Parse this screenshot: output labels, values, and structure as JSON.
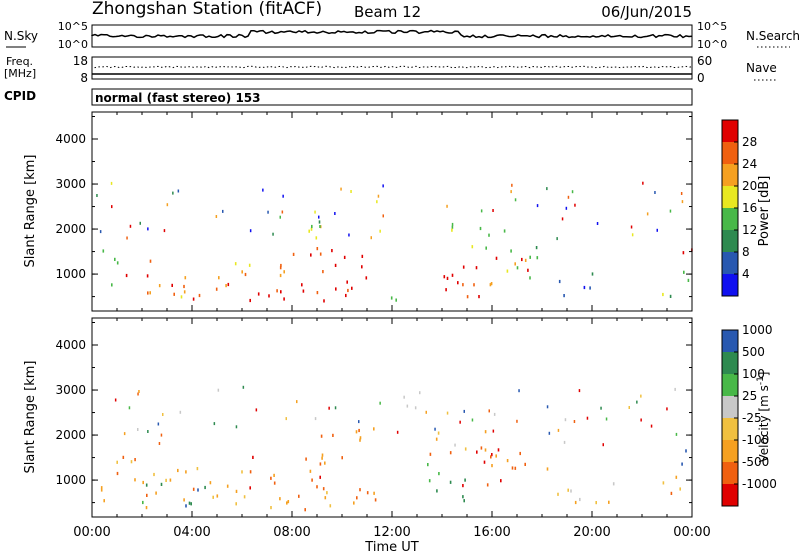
{
  "header": {
    "station": "Zhongshan Station (fitACF)",
    "beam": "Beam 12",
    "date": "06/Jun/2015"
  },
  "side_labels": {
    "nsky": "N.Sky",
    "nsearch": "N.Search",
    "freq": "Freq.",
    "freq_unit": "[MHz]",
    "nave": "Nave",
    "cpid": "CPID"
  },
  "strip_ticks": {
    "noise_left": [
      "10^5",
      "10^0"
    ],
    "noise_right": [
      "10^5",
      "10^0"
    ],
    "freq_left": [
      "18",
      "8"
    ],
    "nave_right": [
      "60",
      "0"
    ]
  },
  "cpid_text": "normal (fast stereo) 153",
  "colors": {
    "power": [
      "#1010f0",
      "#2858b0",
      "#2e8a50",
      "#48b848",
      "#e8e820",
      "#f5a020",
      "#f06010",
      "#e00000"
    ],
    "velocity": [
      "#e00000",
      "#f06010",
      "#f5a020",
      "#f0c040",
      "#c8c8c8",
      "#48b848",
      "#2e8a50",
      "#2858b0"
    ],
    "axis": "#000000",
    "background": "#ffffff"
  },
  "chart_data": [
    {
      "type": "heatmap",
      "panel": "power",
      "ylabel": "Slant Range [km]",
      "xlabel": "",
      "ylim": [
        180,
        4600
      ],
      "yticks": [
        "1000",
        "2000",
        "3000",
        "4000"
      ],
      "xlim": [
        0,
        24
      ],
      "colorbar": {
        "label": "Power [dB]",
        "ticks": [
          "4",
          "8",
          "12",
          "16",
          "20",
          "24",
          "28"
        ],
        "range": [
          0,
          32
        ]
      },
      "regions": [
        {
          "t0": 0.3,
          "t1": 1.0,
          "r0": 400,
          "r1": 1700,
          "level": 3
        },
        {
          "t0": 1.0,
          "t1": 2.5,
          "r0": 900,
          "r1": 1400,
          "level": 7
        },
        {
          "t0": 1.5,
          "t1": 4.0,
          "r0": 450,
          "r1": 900,
          "level": 5
        },
        {
          "t0": 2.5,
          "t1": 5.5,
          "r0": 500,
          "r1": 1150,
          "level": 6
        },
        {
          "t0": 4.0,
          "t1": 9.5,
          "r0": 350,
          "r1": 800,
          "level": 7
        },
        {
          "t0": 5.5,
          "t1": 8.0,
          "r0": 800,
          "r1": 1300,
          "level": 5
        },
        {
          "t0": 7.5,
          "t1": 10.0,
          "r0": 1000,
          "r1": 1700,
          "level": 6
        },
        {
          "t0": 9.5,
          "t1": 11.3,
          "r0": 550,
          "r1": 1800,
          "level": 7
        },
        {
          "t0": 8.0,
          "t1": 11.0,
          "r0": 1800,
          "r1": 2200,
          "level": 3
        },
        {
          "t0": 10.5,
          "t1": 12.5,
          "r0": 400,
          "r1": 600,
          "level": 3
        },
        {
          "t0": 13.3,
          "t1": 15.5,
          "r0": 500,
          "r1": 1600,
          "level": 7
        },
        {
          "t0": 13.5,
          "t1": 16.5,
          "r0": 1600,
          "r1": 2100,
          "level": 3
        },
        {
          "t0": 15.5,
          "t1": 17.5,
          "r0": 700,
          "r1": 1500,
          "level": 6
        },
        {
          "t0": 16.5,
          "t1": 18.5,
          "r0": 900,
          "r1": 1700,
          "level": 3
        },
        {
          "t0": 18.5,
          "t1": 20.0,
          "r0": 400,
          "r1": 1200,
          "level": 1
        },
        {
          "t0": 22.8,
          "t1": 24.0,
          "r0": 1300,
          "r1": 1700,
          "level": 7
        },
        {
          "t0": 22.8,
          "t1": 24.0,
          "r0": 500,
          "r1": 1300,
          "level": 3
        }
      ]
    },
    {
      "type": "heatmap",
      "panel": "velocity",
      "ylabel": "Slant Range [km]",
      "xlabel": "Time UT",
      "ylim": [
        180,
        4600
      ],
      "yticks": [
        "1000",
        "2000",
        "3000",
        "4000"
      ],
      "xlim": [
        0,
        24
      ],
      "xticks": [
        "00:00",
        "04:00",
        "08:00",
        "12:00",
        "16:00",
        "20:00",
        "00:00"
      ],
      "colorbar": {
        "label": "Velocity [m s",
        "label_sup": "-1",
        "label_end": "]",
        "ticks": [
          "-1000",
          "-500",
          "-100",
          "-25",
          "25",
          "100",
          "500",
          "1000"
        ],
        "range": [
          -1500,
          1500
        ]
      },
      "regions": [
        {
          "t0": 0.3,
          "t1": 2.5,
          "r0": 400,
          "r1": 1700,
          "level": 2
        },
        {
          "t0": 1.5,
          "t1": 4.5,
          "r0": 450,
          "r1": 1000,
          "level": 6
        },
        {
          "t0": 2.5,
          "t1": 6.0,
          "r0": 500,
          "r1": 1300,
          "level": 2
        },
        {
          "t0": 4.0,
          "t1": 10.0,
          "r0": 350,
          "r1": 800,
          "level": 2
        },
        {
          "t0": 6.0,
          "t1": 9.5,
          "r0": 800,
          "r1": 1600,
          "level": 1
        },
        {
          "t0": 8.5,
          "t1": 11.5,
          "r0": 1500,
          "r1": 2300,
          "level": 1
        },
        {
          "t0": 10.0,
          "t1": 12.5,
          "r0": 400,
          "r1": 900,
          "level": 2
        },
        {
          "t0": 13.3,
          "t1": 15.0,
          "r0": 500,
          "r1": 1500,
          "level": 6
        },
        {
          "t0": 14.5,
          "t1": 17.0,
          "r0": 900,
          "r1": 1800,
          "level": 1
        },
        {
          "t0": 13.5,
          "t1": 16.5,
          "r0": 1600,
          "r1": 2200,
          "level": 2
        },
        {
          "t0": 16.5,
          "t1": 18.5,
          "r0": 1000,
          "r1": 1700,
          "level": 1
        },
        {
          "t0": 18.5,
          "t1": 21.0,
          "r0": 400,
          "r1": 1100,
          "level": 3
        },
        {
          "t0": 22.8,
          "t1": 24.0,
          "r0": 1300,
          "r1": 1700,
          "level": 7
        },
        {
          "t0": 22.8,
          "t1": 24.0,
          "r0": 500,
          "r1": 1300,
          "level": 2
        }
      ]
    }
  ]
}
